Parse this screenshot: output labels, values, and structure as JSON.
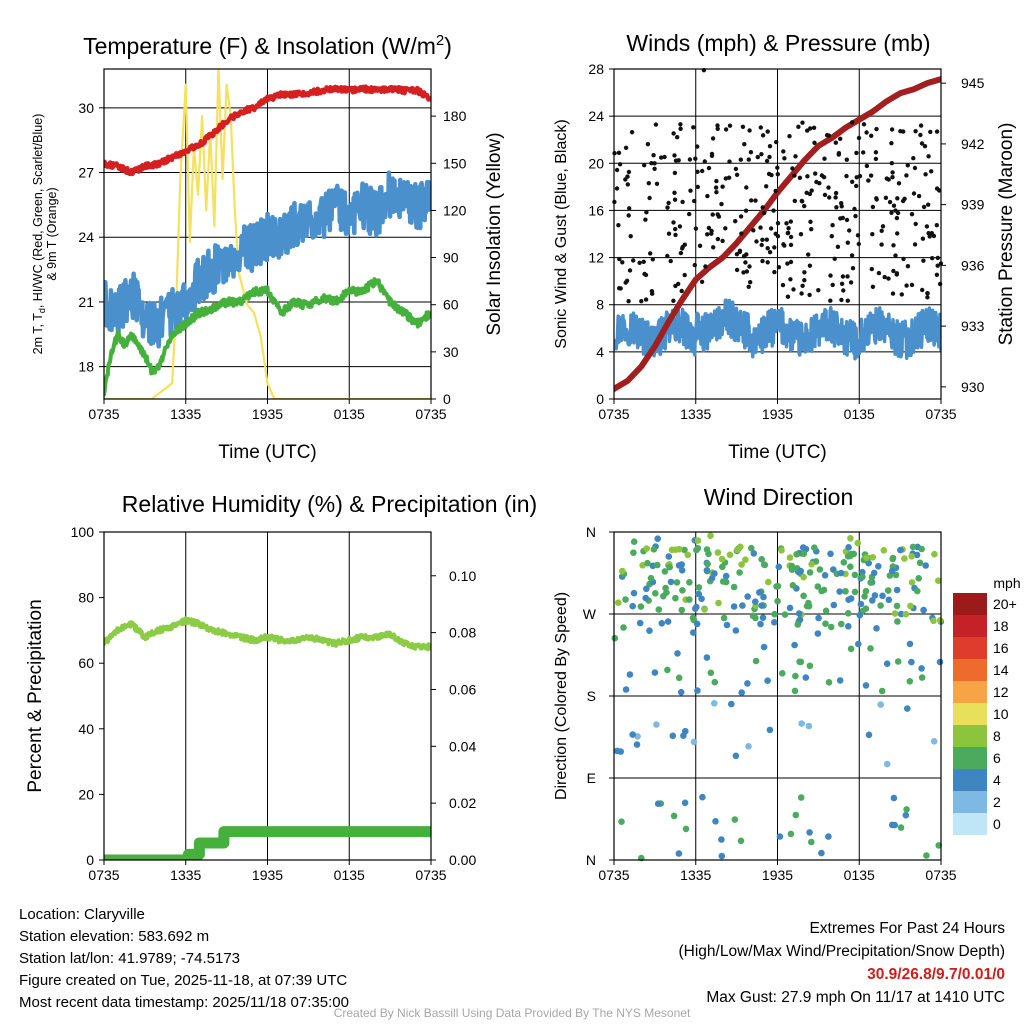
{
  "chart_data": [
    {
      "id": "temp",
      "type": "line",
      "title": "Temperature (F) & Insolation (W/m",
      "title_sup": "2",
      "title_close": ")",
      "xlabel": "Time (UTC)",
      "ylabel": "2m T, Td, HI/WC (Red, Green, Scarlet/Blue) & 9m T (Orange)",
      "ylabel_main": "2m T, T",
      "ylabel_sub": "d",
      "ylabel_rest": ", HI/WC (Red, Green, Scarlet/Blue)",
      "ylabel_line2": "& 9m T (Orange)",
      "y2label": "Solar Insolation (Yellow)",
      "ylim": [
        16.5,
        31.8
      ],
      "y2lim": [
        0,
        210
      ],
      "yticks": [
        18,
        21,
        24,
        27,
        30
      ],
      "y2ticks": [
        0,
        30,
        60,
        90,
        120,
        150,
        180
      ],
      "xlim": [
        0,
        24
      ],
      "xticks": [
        "0735",
        "1335",
        "1935",
        "0135",
        "0735"
      ],
      "series": [
        {
          "name": "Solar Insolation",
          "axis": "y2",
          "color": "#f5e15a",
          "width": 2.2,
          "noise": 0,
          "x": [
            0,
            2,
            3.5,
            5.0,
            5.3,
            5.6,
            6.0,
            6.3,
            6.6,
            6.9,
            7.2,
            7.5,
            7.8,
            8.1,
            8.4,
            8.7,
            9.0,
            9.3,
            9.6,
            9.9,
            10.2,
            10.5,
            11.0,
            11.5,
            12.0,
            12.5,
            13.0,
            24
          ],
          "values": [
            0,
            0,
            0,
            10,
            60,
            140,
            200,
            100,
            160,
            130,
            180,
            120,
            170,
            110,
            210,
            140,
            200,
            180,
            120,
            80,
            70,
            60,
            55,
            40,
            10,
            0,
            0,
            0
          ]
        },
        {
          "name": "Temperature (2m)",
          "axis": "y",
          "color": "#d42020",
          "width": 4.5,
          "noise": 0.12,
          "x": [
            0,
            1,
            2,
            3,
            4,
            5,
            6,
            7,
            8,
            9,
            10,
            11,
            12,
            13,
            14,
            15,
            16,
            17,
            18,
            19,
            20,
            21,
            22,
            23,
            24
          ],
          "values": [
            27.4,
            27.3,
            27.0,
            27.3,
            27.4,
            27.7,
            28.0,
            28.3,
            28.8,
            29.4,
            29.8,
            30.0,
            30.4,
            30.6,
            30.6,
            30.7,
            30.8,
            30.9,
            30.8,
            30.9,
            30.8,
            30.9,
            30.8,
            30.8,
            30.4
          ]
        },
        {
          "name": "Heat Index / Wind Chill",
          "axis": "y",
          "color": "#4a90cc",
          "width": 4.5,
          "noise": 1.1,
          "x": [
            0,
            1,
            2,
            3,
            4,
            5,
            6,
            7,
            8,
            9,
            10,
            11,
            12,
            13,
            14,
            15,
            16,
            17,
            18,
            19,
            20,
            21,
            22,
            23,
            24
          ],
          "values": [
            21.0,
            20.5,
            21.5,
            20.0,
            20.0,
            20.5,
            21.0,
            22.0,
            22.5,
            23.0,
            23.5,
            23.5,
            24.0,
            24.0,
            24.5,
            25.0,
            25.0,
            25.5,
            25.0,
            25.5,
            25.0,
            26.0,
            25.5,
            25.5,
            25.5
          ]
        },
        {
          "name": "Dewpoint",
          "axis": "y",
          "color": "#45b03c",
          "width": 4,
          "noise": 0.18,
          "x": [
            0,
            0.5,
            1,
            1.5,
            2,
            2.5,
            3,
            3.5,
            4,
            5,
            6,
            7,
            8,
            9,
            10,
            11,
            12,
            13,
            14,
            15,
            16,
            17,
            18,
            19,
            20,
            21,
            22,
            23,
            24
          ],
          "values": [
            16.8,
            18.5,
            19.5,
            19.0,
            19.5,
            19.0,
            18.5,
            17.8,
            18.0,
            19.5,
            20.0,
            20.5,
            20.7,
            21.0,
            21.0,
            21.5,
            21.5,
            20.5,
            21.0,
            20.8,
            21.2,
            21.0,
            21.5,
            21.5,
            22.0,
            21.0,
            20.5,
            20.0,
            20.5
          ]
        }
      ]
    },
    {
      "id": "wind",
      "type": "line",
      "title": "Winds (mph) & Pressure (mb)",
      "xlabel": "Time (UTC)",
      "ylabel": "Sonic Wind & Gust (Blue, Black)",
      "y2label": "Station Pressure (Maroon)",
      "ylim": [
        0,
        28
      ],
      "y2lim": [
        929.4,
        945.7
      ],
      "yticks": [
        0,
        4,
        8,
        12,
        16,
        20,
        24,
        28
      ],
      "y2ticks": [
        930,
        933,
        936,
        939,
        942,
        945
      ],
      "xlim": [
        0,
        24
      ],
      "xticks": [
        "0735",
        "1335",
        "1935",
        "0135",
        "0735"
      ],
      "pressure": {
        "name": "Station Pressure",
        "color": "#a11f1f",
        "x": [
          0,
          1,
          2,
          3,
          4,
          5,
          6,
          7,
          8,
          9,
          10,
          11,
          12,
          13,
          14,
          15,
          16,
          17,
          18,
          19,
          20,
          21,
          22,
          23,
          24
        ],
        "values": [
          929.9,
          930.3,
          931.0,
          932.0,
          933.2,
          934.3,
          935.3,
          935.9,
          936.4,
          937.1,
          937.9,
          938.7,
          939.6,
          940.4,
          941.2,
          941.9,
          942.3,
          942.8,
          943.2,
          943.6,
          944.1,
          944.5,
          944.7,
          945.0,
          945.2
        ]
      },
      "sustained": {
        "name": "Sonic Wind",
        "color": "#4a90cc",
        "mean": 5.6,
        "spread": 1.6
      },
      "gusts": {
        "name": "Gust",
        "color": "#111111",
        "count": 380,
        "low": 8.2,
        "high": 23.5,
        "max_value": 27.9,
        "max_x": 6.6
      }
    },
    {
      "id": "rh",
      "type": "line",
      "title": "Relative Humidity (%) & Precipitation (in)",
      "ylabel": "Percent & Precipitation",
      "ylim": [
        0,
        100
      ],
      "y2lim": [
        0,
        0.1154
      ],
      "yticks": [
        0,
        20,
        40,
        60,
        80,
        100
      ],
      "y2ticks": [
        "0.00",
        "0.02",
        "0.04",
        "0.06",
        "0.08",
        "0.10"
      ],
      "xlim": [
        0,
        24
      ],
      "xticks": [
        "0735",
        "1335",
        "1935",
        "0135",
        "0735"
      ],
      "series": [
        {
          "name": "Relative Humidity",
          "axis": "y",
          "color": "#8ccb45",
          "width": 4,
          "noise": 0.8,
          "x": [
            0,
            1,
            2,
            3,
            4,
            5,
            6,
            7,
            8,
            9,
            10,
            11,
            12,
            13,
            14,
            15,
            16,
            17,
            18,
            19,
            20,
            21,
            22,
            23,
            24
          ],
          "values": [
            66,
            70,
            72,
            68,
            70,
            71,
            73,
            72,
            70,
            69,
            68,
            67,
            68,
            67,
            67,
            68,
            67,
            66,
            67,
            68,
            68,
            69,
            66,
            65,
            65
          ]
        },
        {
          "name": "Precipitation",
          "axis": "y2",
          "color": "#45b03c",
          "width": 11,
          "noise": 0,
          "step": true,
          "x": [
            0,
            6.2,
            7.0,
            8.8,
            24
          ],
          "values": [
            0,
            0.002,
            0.006,
            0.01,
            0.01
          ]
        }
      ]
    },
    {
      "id": "dir",
      "type": "scatter",
      "title": "Wind Direction",
      "ylabel": "Direction (Colored By Speed)",
      "yticks": [
        "N",
        "E",
        "S",
        "W",
        "N"
      ],
      "ylim": [
        0,
        360
      ],
      "xlim": [
        0,
        24
      ],
      "xticks": [
        "0735",
        "1335",
        "1935",
        "0135",
        "0735"
      ],
      "colorbar": {
        "unit": "mph",
        "labels": [
          "20+",
          "18",
          "16",
          "14",
          "12",
          "10",
          "8",
          "6",
          "4",
          "2",
          "0"
        ],
        "colors": [
          "#9b1a1a",
          "#c52228",
          "#e03c2e",
          "#ef6b2d",
          "#f5a545",
          "#e8e05a",
          "#8cc43e",
          "#4caa5e",
          "#3f86c1",
          "#7db9e2",
          "#bfe6f7"
        ]
      },
      "groups": [
        {
          "count": 230,
          "dir_low": 255,
          "dir_high": 345,
          "speed_low": 3,
          "speed_high": 8
        },
        {
          "count": 30,
          "dir_low": 320,
          "dir_high": 358,
          "speed_low": 4,
          "speed_high": 9
        },
        {
          "count": 45,
          "dir_low": 180,
          "dir_high": 255,
          "speed_low": 3,
          "speed_high": 7
        },
        {
          "count": 22,
          "dir_low": 100,
          "dir_high": 175,
          "speed_low": 2,
          "speed_high": 5
        },
        {
          "count": 30,
          "dir_low": 0,
          "dir_high": 70,
          "speed_low": 3,
          "speed_high": 7
        }
      ]
    }
  ],
  "station": {
    "location": "Location: Claryville",
    "elevation": "Station elevation: 583.692 m",
    "latlon": "Station lat/lon: 41.9789; -74.5173",
    "created": "Figure created on Tue, 2025-11-18, at 07:39 UTC",
    "recent": "Most recent data timestamp: 2025/11/18 07:35:00"
  },
  "extremes": {
    "title": "Extremes For Past 24 Hours",
    "legend": "(High/Low/Max Wind/Precipitation/Snow Depth)",
    "values": "30.9/26.8/9.7/0.01/0",
    "max_gust": "Max Gust: 27.9 mph On 11/17 at 1410 UTC"
  },
  "credit": "Created By Nick Bassill Using Data Provided By The NYS Mesonet"
}
